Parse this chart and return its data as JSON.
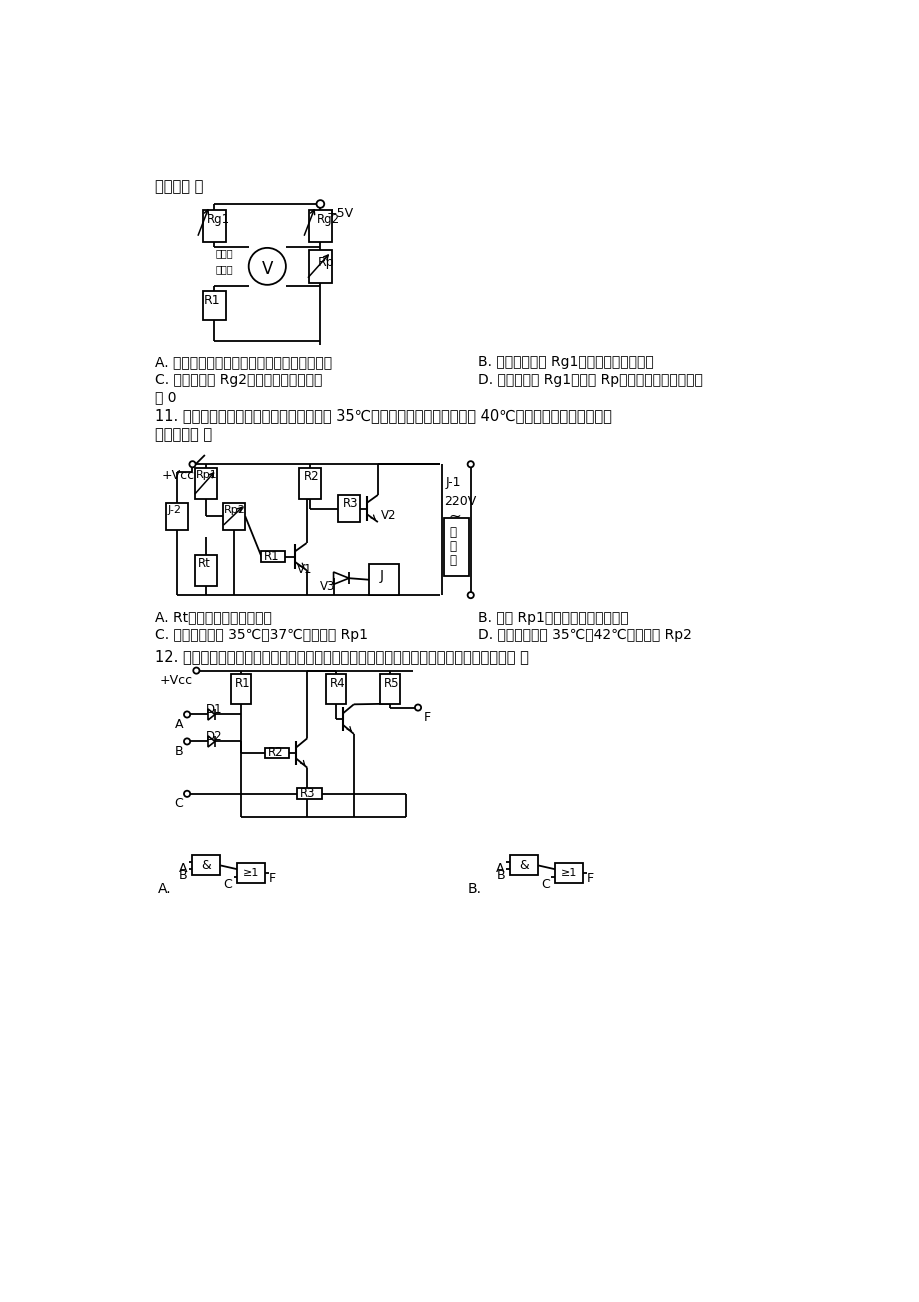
{
  "bg_color": "#ffffff",
  "line1": "确的是（ ）",
  "q10_A": "A. 多用电表既可选择数字式，也可选择指针式",
  "q10_B": "B. 仅用强光照射 Rg1，电压表读数为负値",
  "q10_C": "C. 用黑袋套住 Rg2，电压表读数为正値",
  "q10_D": "D. 用黑袋套住 Rg1，调大 Rp，可将电压表读数调回",
  "q10_D2": "为 0",
  "q11_text1": "11. 如图所示的温度控制电路，当温度低于 35℃时，加热器开始加热；达到 40℃时停止加热。下列分析中",
  "q11_text2": "正确的是（ ）",
  "q11_A": "A. Rt是正温度系数热敏电阴",
  "q11_B": "B. 调大 Rp1，上下限温度都将变高",
  "q11_C": "C. 温控范围改为 35℃－37℃，应调大 Rp1",
  "q11_D": "D. 温控范围改为 35℃－42℃，应调大 Rp2",
  "q12_text": "12. 如图所示电路三极管均工作在开关状态，下列逻辑电路中与该电路逻辑关系相同的是（ ）"
}
